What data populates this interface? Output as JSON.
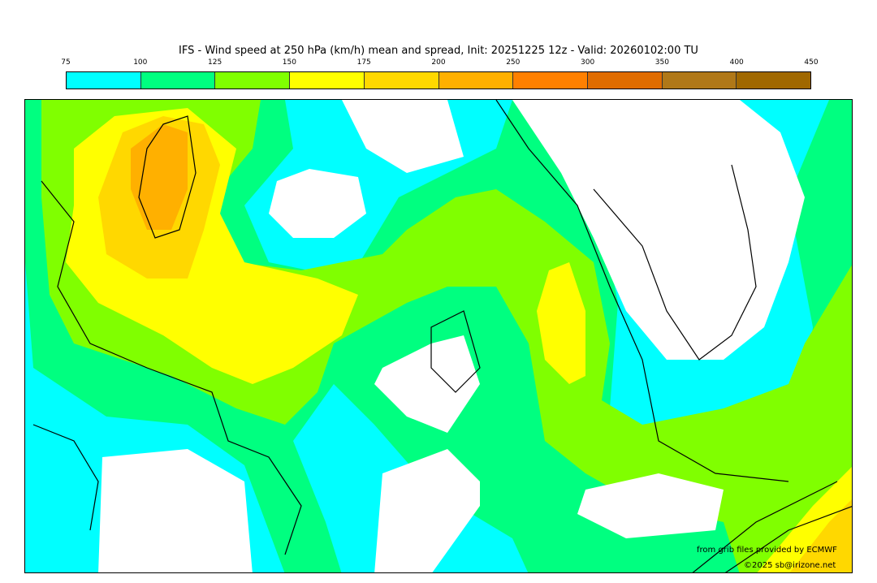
{
  "title": "IFS - Wind speed at 250 hPa (km/h) mean and spread, Init: 20251225 12z - Valid: 20260102:00 TU",
  "legend": {
    "ticks": [
      "75",
      "100",
      "125",
      "150",
      "175",
      "200",
      "250",
      "300",
      "350",
      "400",
      "450"
    ],
    "colors": [
      "#00ffff",
      "#00ff80",
      "#80ff00",
      "#ffff00",
      "#ffd800",
      "#ffb000",
      "#ff8000",
      "#e06c00",
      "#b07818",
      "#a06800"
    ]
  },
  "credits": {
    "source": "from grib files provided by ECMWF",
    "copyright": "©2025 sb@irizone.net"
  }
}
